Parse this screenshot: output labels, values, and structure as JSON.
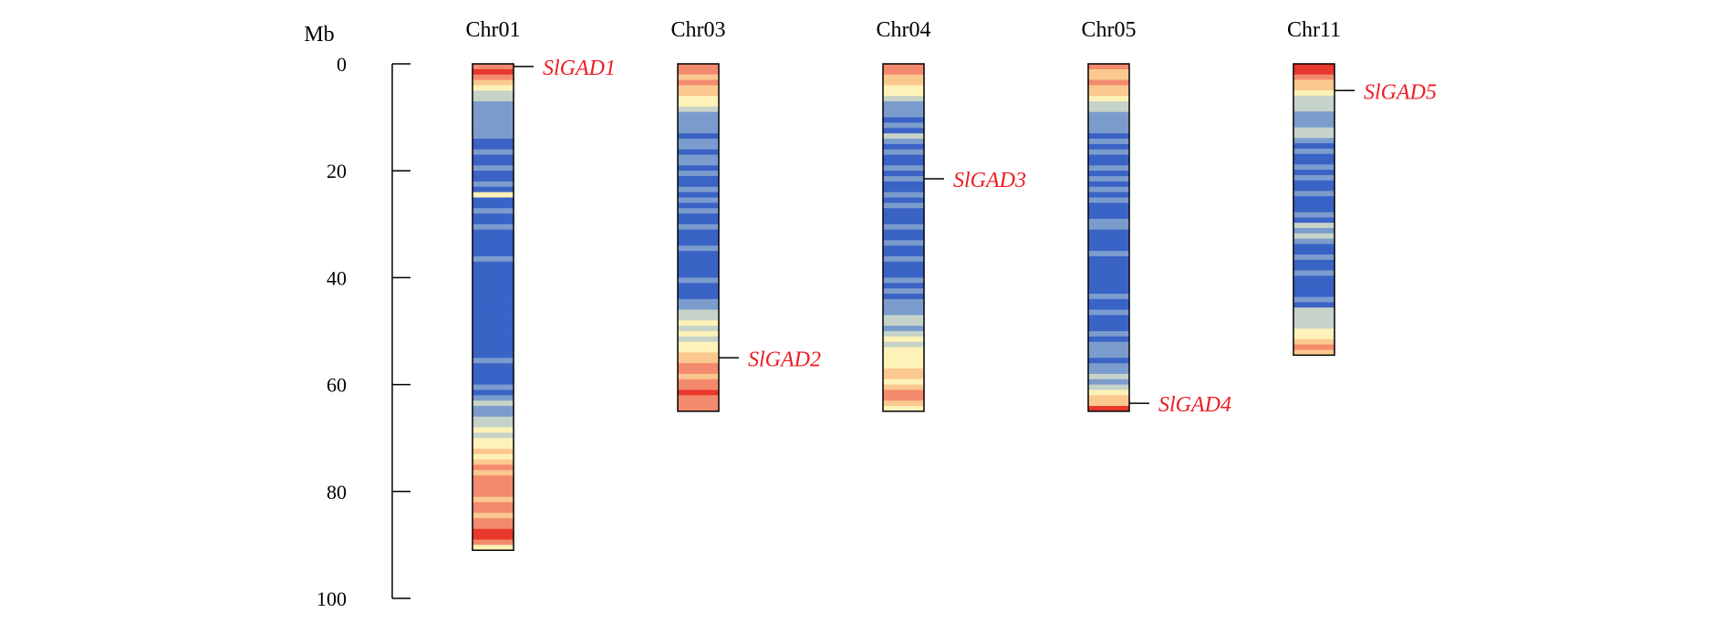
{
  "chart_data": {
    "type": "chromosome-map",
    "axis": {
      "unit_label": "Mb",
      "min": 0,
      "max": 100,
      "ticks": [
        0,
        20,
        40,
        60,
        80,
        100
      ],
      "tick_labels": [
        "0",
        "20",
        "40",
        "60",
        "80",
        "100"
      ]
    },
    "gene_color": "#ee1c24",
    "density_colors": [
      "#3a63c6",
      "#7b9ccd",
      "#c6d3c8",
      "#fdf2b8",
      "#fbc88f",
      "#f38a6e",
      "#e8372b"
    ],
    "chromosomes": [
      {
        "name": "Chr01",
        "length": 91,
        "density": [
          5,
          6,
          5,
          4,
          3,
          2,
          2,
          1,
          1,
          1,
          1,
          1,
          1,
          1,
          0,
          0,
          1,
          0,
          0,
          1,
          0,
          0,
          1,
          0,
          3,
          0,
          0,
          1,
          0,
          0,
          1,
          0,
          0,
          0,
          0,
          0,
          1,
          0,
          0,
          0,
          0,
          0,
          0,
          0,
          0,
          0,
          0,
          0,
          0,
          0,
          0,
          0,
          0,
          0,
          0,
          1,
          0,
          0,
          0,
          0,
          1,
          0,
          1,
          2,
          1,
          1,
          2,
          2,
          3,
          2,
          3,
          3,
          4,
          3,
          4,
          5,
          4,
          5,
          5,
          5,
          5,
          4,
          5,
          5,
          4,
          5,
          5,
          6,
          6,
          5,
          3
        ]
      },
      {
        "name": "Chr03",
        "length": 65,
        "density": [
          5,
          5,
          4,
          5,
          4,
          4,
          3,
          3,
          2,
          1,
          1,
          1,
          1,
          0,
          1,
          1,
          0,
          1,
          1,
          0,
          1,
          0,
          0,
          1,
          0,
          1,
          0,
          1,
          0,
          0,
          1,
          0,
          0,
          0,
          1,
          0,
          0,
          0,
          0,
          0,
          1,
          0,
          0,
          0,
          1,
          1,
          2,
          2,
          3,
          2,
          3,
          2,
          3,
          3,
          4,
          4,
          5,
          5,
          4,
          5,
          5,
          6,
          5,
          5,
          5
        ]
      },
      {
        "name": "Chr04",
        "length": 65,
        "density": [
          5,
          5,
          4,
          4,
          3,
          3,
          2,
          1,
          1,
          1,
          0,
          1,
          0,
          2,
          1,
          0,
          1,
          0,
          0,
          1,
          0,
          1,
          0,
          0,
          1,
          0,
          1,
          0,
          0,
          0,
          1,
          0,
          0,
          1,
          0,
          0,
          1,
          0,
          0,
          0,
          1,
          0,
          1,
          0,
          1,
          1,
          1,
          2,
          2,
          1,
          2,
          3,
          2,
          3,
          3,
          3,
          3,
          4,
          4,
          3,
          4,
          5,
          5,
          4,
          3
        ]
      },
      {
        "name": "Chr05",
        "length": 65,
        "density": [
          5,
          4,
          4,
          5,
          4,
          4,
          3,
          2,
          2,
          1,
          1,
          1,
          1,
          0,
          1,
          0,
          1,
          0,
          0,
          1,
          0,
          1,
          0,
          1,
          0,
          1,
          0,
          0,
          0,
          1,
          1,
          0,
          0,
          0,
          0,
          1,
          0,
          0,
          0,
          0,
          0,
          0,
          0,
          1,
          0,
          0,
          1,
          0,
          0,
          0,
          1,
          0,
          1,
          1,
          1,
          0,
          1,
          1,
          2,
          1,
          2,
          3,
          4,
          4,
          6
        ]
      },
      {
        "name": "Chr11",
        "length": 54.5,
        "density": [
          6,
          6,
          5,
          4,
          4,
          3,
          2,
          2,
          2,
          1,
          1,
          1,
          2,
          2,
          1,
          0,
          1,
          0,
          0,
          1,
          0,
          1,
          0,
          0,
          1,
          0,
          0,
          0,
          1,
          0,
          2,
          1,
          2,
          1,
          0,
          0,
          1,
          0,
          0,
          1,
          0,
          0,
          0,
          0,
          1,
          0,
          2,
          2,
          2,
          2,
          3,
          3,
          4,
          5,
          4
        ]
      }
    ],
    "genes": [
      {
        "name": "SlGAD1",
        "chromosome": "Chr01",
        "position": 0.5
      },
      {
        "name": "SlGAD2",
        "chromosome": "Chr03",
        "position": 55
      },
      {
        "name": "SlGAD3",
        "chromosome": "Chr04",
        "position": 21.5
      },
      {
        "name": "SlGAD4",
        "chromosome": "Chr05",
        "position": 63.5
      },
      {
        "name": "SlGAD5",
        "chromosome": "Chr11",
        "position": 5
      }
    ]
  }
}
